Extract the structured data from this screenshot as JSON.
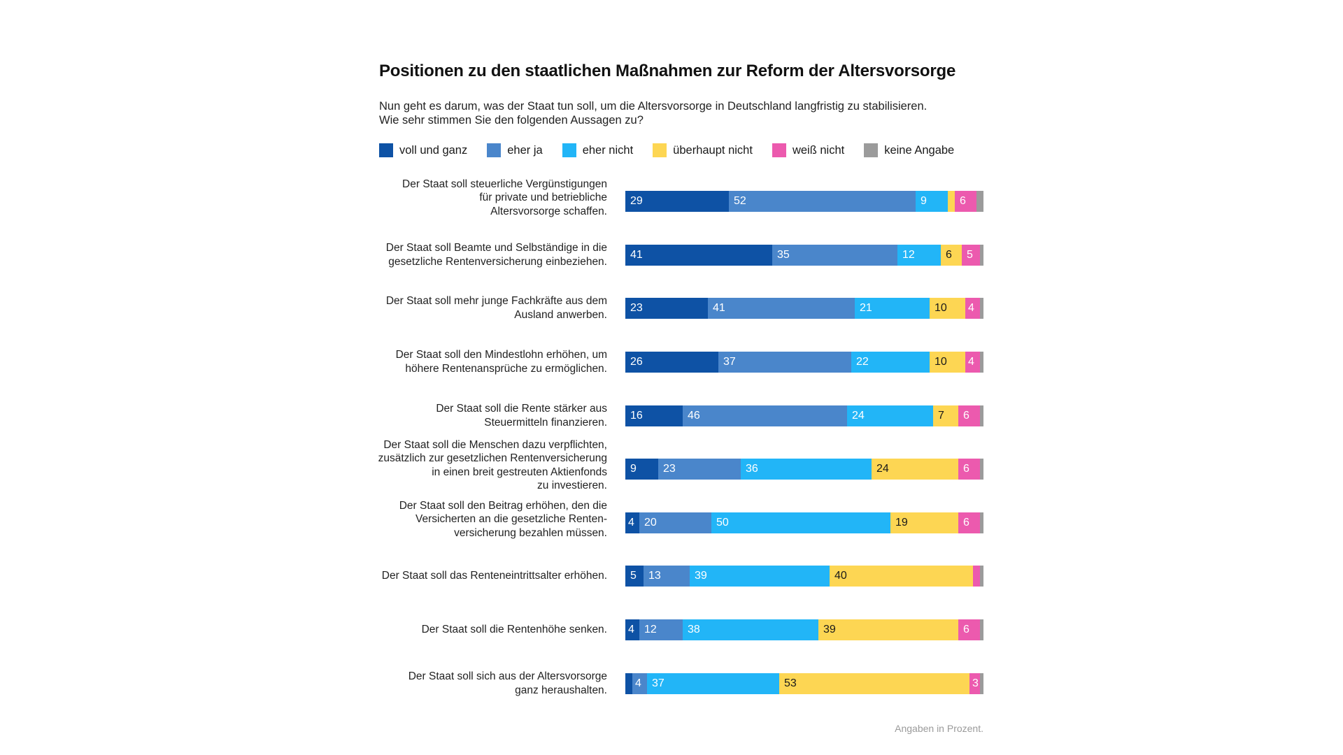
{
  "chart_data": {
    "type": "bar",
    "orientation": "horizontal-stacked-100",
    "title": "Positionen zu den staatlichen Maßnahmen zur Reform der Altersvorsorge",
    "subtitle": [
      "Nun geht es darum, was der Staat tun soll, um die Altersvorsorge in Deutschland langfristig zu stabilisieren.",
      "Wie sehr stimmen Sie den folgenden Aussagen zu?"
    ],
    "legend": [
      {
        "name": "voll und ganz",
        "color": "#0E52A5"
      },
      {
        "name": "eher ja",
        "color": "#4A86CB"
      },
      {
        "name": "eher nicht",
        "color": "#22B5F7"
      },
      {
        "name": "überhaupt nicht",
        "color": "#FDD653"
      },
      {
        "name": "weiß nicht",
        "color": "#EC5AAE"
      },
      {
        "name": "keine Angabe",
        "color": "#9B9B9B"
      }
    ],
    "legend_position": "top-left",
    "categories": [
      [
        "Der Staat soll steuerliche Vergünstigungen",
        "für private und betriebliche",
        "Altersvorsorge schaffen."
      ],
      [
        "Der Staat soll Beamte und Selbständige in die",
        "gesetzliche Rentenversicherung einbeziehen."
      ],
      [
        "Der Staat soll mehr junge Fachkräfte aus dem",
        "Ausland anwerben."
      ],
      [
        "Der Staat soll den Mindestlohn erhöhen, um",
        "höhere Rentenansprüche zu ermöglichen."
      ],
      [
        "Der Staat soll die Rente stärker aus",
        "Steuermitteln finanzieren."
      ],
      [
        "Der Staat soll die Menschen dazu verpflichten,",
        "zusätzlich zur gesetzlichen Rentenversicherung",
        "in einen breit gestreuten Aktienfonds",
        "zu investieren."
      ],
      [
        "Der Staat soll den Beitrag erhöhen, den die",
        "Versicherten an die gesetzliche Renten-",
        "versicherung bezahlen müssen."
      ],
      [
        "Der Staat soll das Renteneintrittsalter erhöhen."
      ],
      [
        "Der Staat soll die Rentenhöhe senken."
      ],
      [
        "Der Staat soll sich aus der Altersvorsorge",
        "ganz heraushalten."
      ]
    ],
    "series": [
      {
        "name": "voll und ganz",
        "values": [
          29,
          41,
          23,
          26,
          16,
          9,
          4,
          5,
          4,
          2
        ]
      },
      {
        "name": "eher ja",
        "values": [
          52,
          35,
          41,
          37,
          46,
          23,
          20,
          13,
          12,
          4
        ]
      },
      {
        "name": "eher nicht",
        "values": [
          9,
          12,
          21,
          22,
          24,
          36,
          50,
          39,
          38,
          37
        ]
      },
      {
        "name": "überhaupt nicht",
        "values": [
          2,
          6,
          10,
          10,
          7,
          24,
          19,
          40,
          39,
          53
        ]
      },
      {
        "name": "weiß nicht",
        "values": [
          6,
          5,
          4,
          4,
          6,
          6,
          6,
          2,
          6,
          3
        ]
      },
      {
        "name": "keine Angabe",
        "values": [
          2,
          1,
          1,
          1,
          1,
          1,
          1,
          1,
          1,
          1
        ]
      }
    ],
    "labels_shown": [
      [
        true,
        true,
        true,
        false,
        true,
        false
      ],
      [
        true,
        true,
        true,
        true,
        true,
        false
      ],
      [
        true,
        true,
        true,
        true,
        true,
        false
      ],
      [
        true,
        true,
        true,
        true,
        true,
        false
      ],
      [
        true,
        true,
        true,
        true,
        true,
        false
      ],
      [
        true,
        true,
        true,
        true,
        true,
        false
      ],
      [
        true,
        true,
        true,
        true,
        true,
        false
      ],
      [
        true,
        true,
        true,
        true,
        false,
        false
      ],
      [
        true,
        true,
        true,
        true,
        true,
        false
      ],
      [
        false,
        true,
        true,
        true,
        true,
        false
      ]
    ],
    "xlim": [
      0,
      100
    ],
    "unit": "%",
    "grid": false,
    "footnote": "Angaben in Prozent."
  }
}
